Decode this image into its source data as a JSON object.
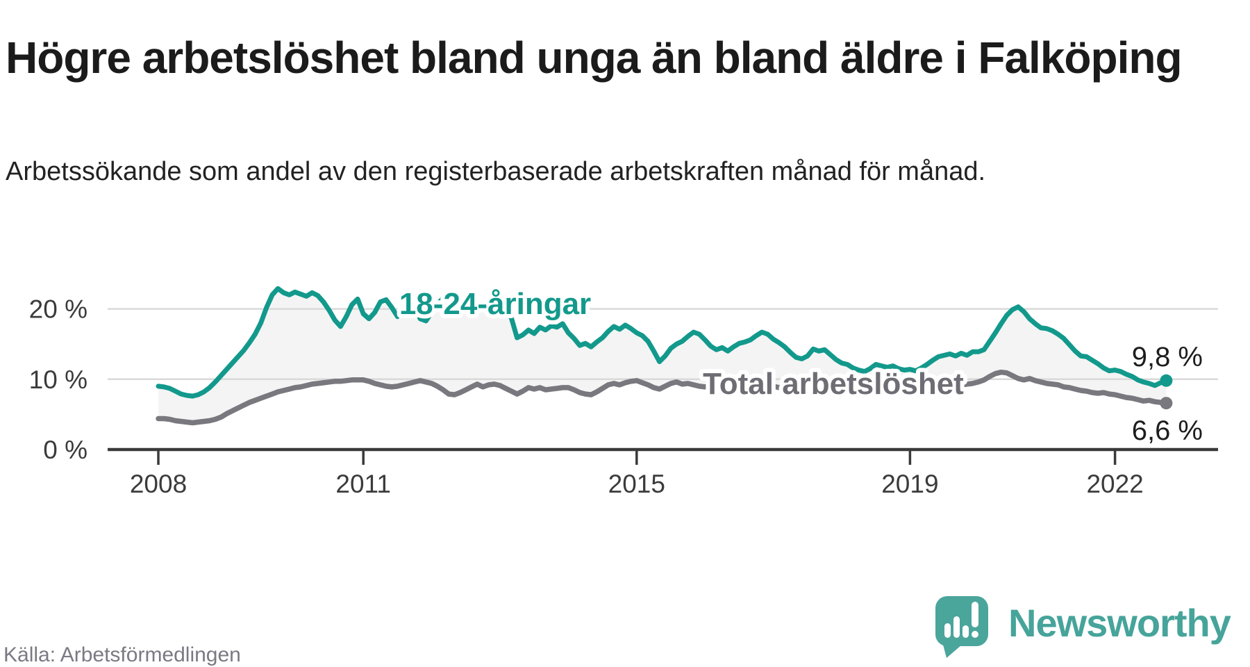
{
  "header": {
    "title": "Högre arbetslöshet bland unga än bland äldre i Falköping",
    "subtitle": "Arbetssökande som andel av den registerbaserade arbetskraften månad för månad."
  },
  "footer": {
    "source": "Källa: Arbetsförmedlingen",
    "brand_name": "Newsworthy",
    "brand_color": "#46a49a",
    "logo_icon": "speech-bubble-bar-chart-exclamation-icon",
    "logo_color": "#4aa59b"
  },
  "chart_data": {
    "type": "line",
    "unit": "%",
    "x_start_year": 2008,
    "x_interval": "monthly",
    "x_ticks": [
      2008,
      2011,
      2015,
      2019,
      2022
    ],
    "y_ticks": [
      {
        "value": 20,
        "label": "20 %"
      },
      {
        "value": 10,
        "label": "10 %"
      },
      {
        "value": 0,
        "label": "0 %"
      }
    ],
    "ylim": [
      0,
      28
    ],
    "grid": "horizontal",
    "legend_position": "inline-labels",
    "area_fill_color": "#f4f4f4",
    "grid_color": "#d9d9d9",
    "axis_color": "#3a3a3a",
    "tick_label_color": "#3b3b3b",
    "end_label_color": "#1d1d1d",
    "series": [
      {
        "name": "18-24-åringar",
        "color": "#12998c",
        "label_color": "#12998c",
        "end_label": "9,8 %",
        "end_value": 9.8,
        "values": [
          9.0,
          8.9,
          8.7,
          8.3,
          7.9,
          7.7,
          7.6,
          7.8,
          8.2,
          8.8,
          9.6,
          10.5,
          11.4,
          12.3,
          13.2,
          14.1,
          15.2,
          16.4,
          18.0,
          20.2,
          22.0,
          22.9,
          22.3,
          22.0,
          22.4,
          22.1,
          21.8,
          22.3,
          21.9,
          21.0,
          19.8,
          18.4,
          17.5,
          18.9,
          20.6,
          21.4,
          19.3,
          18.6,
          19.5,
          21.0,
          21.3,
          20.2,
          18.9,
          19.9,
          20.9,
          20.1,
          18.6,
          18.3,
          19.5,
          20.7,
          21.5,
          21.1,
          20.3,
          19.6,
          19.9,
          20.6,
          20.0,
          20.5,
          21.0,
          21.3,
          21.0,
          19.8,
          18.7,
          15.9,
          16.3,
          17.0,
          16.5,
          17.4,
          17.0,
          17.6,
          17.4,
          17.9,
          16.6,
          15.8,
          14.8,
          15.1,
          14.6,
          15.3,
          15.9,
          16.8,
          17.5,
          17.1,
          17.7,
          17.2,
          16.6,
          16.2,
          15.4,
          14.0,
          12.5,
          13.3,
          14.4,
          15.0,
          15.4,
          16.1,
          16.7,
          16.4,
          15.6,
          14.7,
          14.2,
          14.5,
          14.0,
          14.6,
          15.1,
          15.3,
          15.6,
          16.2,
          16.7,
          16.4,
          15.7,
          15.2,
          14.6,
          13.8,
          13.1,
          12.9,
          13.3,
          14.3,
          14.0,
          14.2,
          13.5,
          12.8,
          12.3,
          12.1,
          11.6,
          11.3,
          11.1,
          11.5,
          12.1,
          11.9,
          11.7,
          11.9,
          11.5,
          11.3,
          11.4,
          11.2,
          11.6,
          12.1,
          12.7,
          13.2,
          13.4,
          13.6,
          13.3,
          13.7,
          13.4,
          13.9,
          13.9,
          14.2,
          15.4,
          16.6,
          17.9,
          19.1,
          19.9,
          20.3,
          19.6,
          18.6,
          17.9,
          17.3,
          17.2,
          16.9,
          16.4,
          15.8,
          14.9,
          14.0,
          13.3,
          13.2,
          12.7,
          12.2,
          11.6,
          11.2,
          11.3,
          11.1,
          10.7,
          10.4,
          9.9,
          9.6,
          9.4,
          9.1,
          9.5,
          9.8
        ]
      },
      {
        "name": "Total arbetslöshet",
        "color": "#79787e",
        "label_color": "#6e6d74",
        "end_label": "6,6 %",
        "end_value": 6.6,
        "values": [
          4.4,
          4.4,
          4.3,
          4.1,
          4.0,
          3.9,
          3.8,
          3.9,
          4.0,
          4.1,
          4.3,
          4.6,
          5.1,
          5.5,
          5.9,
          6.3,
          6.7,
          7.0,
          7.3,
          7.6,
          7.9,
          8.2,
          8.4,
          8.6,
          8.8,
          8.9,
          9.1,
          9.3,
          9.4,
          9.5,
          9.6,
          9.7,
          9.7,
          9.8,
          9.9,
          9.9,
          9.9,
          9.7,
          9.4,
          9.2,
          9.0,
          8.9,
          9.0,
          9.2,
          9.4,
          9.6,
          9.8,
          9.6,
          9.4,
          9.0,
          8.5,
          7.9,
          7.8,
          8.1,
          8.5,
          8.9,
          9.3,
          8.9,
          9.2,
          9.3,
          9.1,
          8.7,
          8.3,
          7.9,
          8.3,
          8.8,
          8.6,
          8.8,
          8.5,
          8.6,
          8.7,
          8.8,
          8.8,
          8.5,
          8.1,
          7.9,
          7.8,
          8.2,
          8.7,
          9.2,
          9.4,
          9.2,
          9.5,
          9.7,
          9.8,
          9.5,
          9.2,
          8.8,
          8.6,
          9.0,
          9.4,
          9.6,
          9.3,
          9.4,
          9.2,
          9.0,
          8.9,
          9.1,
          8.9,
          9.0,
          8.8,
          8.9,
          9.0,
          9.1,
          9.2,
          9.3,
          9.2,
          9.1,
          9.0,
          8.8,
          8.7,
          8.5,
          8.4,
          8.3,
          8.4,
          8.6,
          8.7,
          8.8,
          8.6,
          8.5,
          8.4,
          8.2,
          8.1,
          8.0,
          7.9,
          8.0,
          8.2,
          8.4,
          8.5,
          8.4,
          8.3,
          8.4,
          8.5,
          8.4,
          8.3,
          8.4,
          8.5,
          8.6,
          8.7,
          8.9,
          9.0,
          9.2,
          9.3,
          9.4,
          9.6,
          9.9,
          10.4,
          10.8,
          11.0,
          10.9,
          10.5,
          10.1,
          9.9,
          10.1,
          9.8,
          9.6,
          9.4,
          9.3,
          9.2,
          8.9,
          8.8,
          8.6,
          8.4,
          8.3,
          8.1,
          8.0,
          8.1,
          7.9,
          7.8,
          7.6,
          7.4,
          7.3,
          7.1,
          6.9,
          7.0,
          6.8,
          6.7,
          6.6
        ]
      }
    ]
  }
}
